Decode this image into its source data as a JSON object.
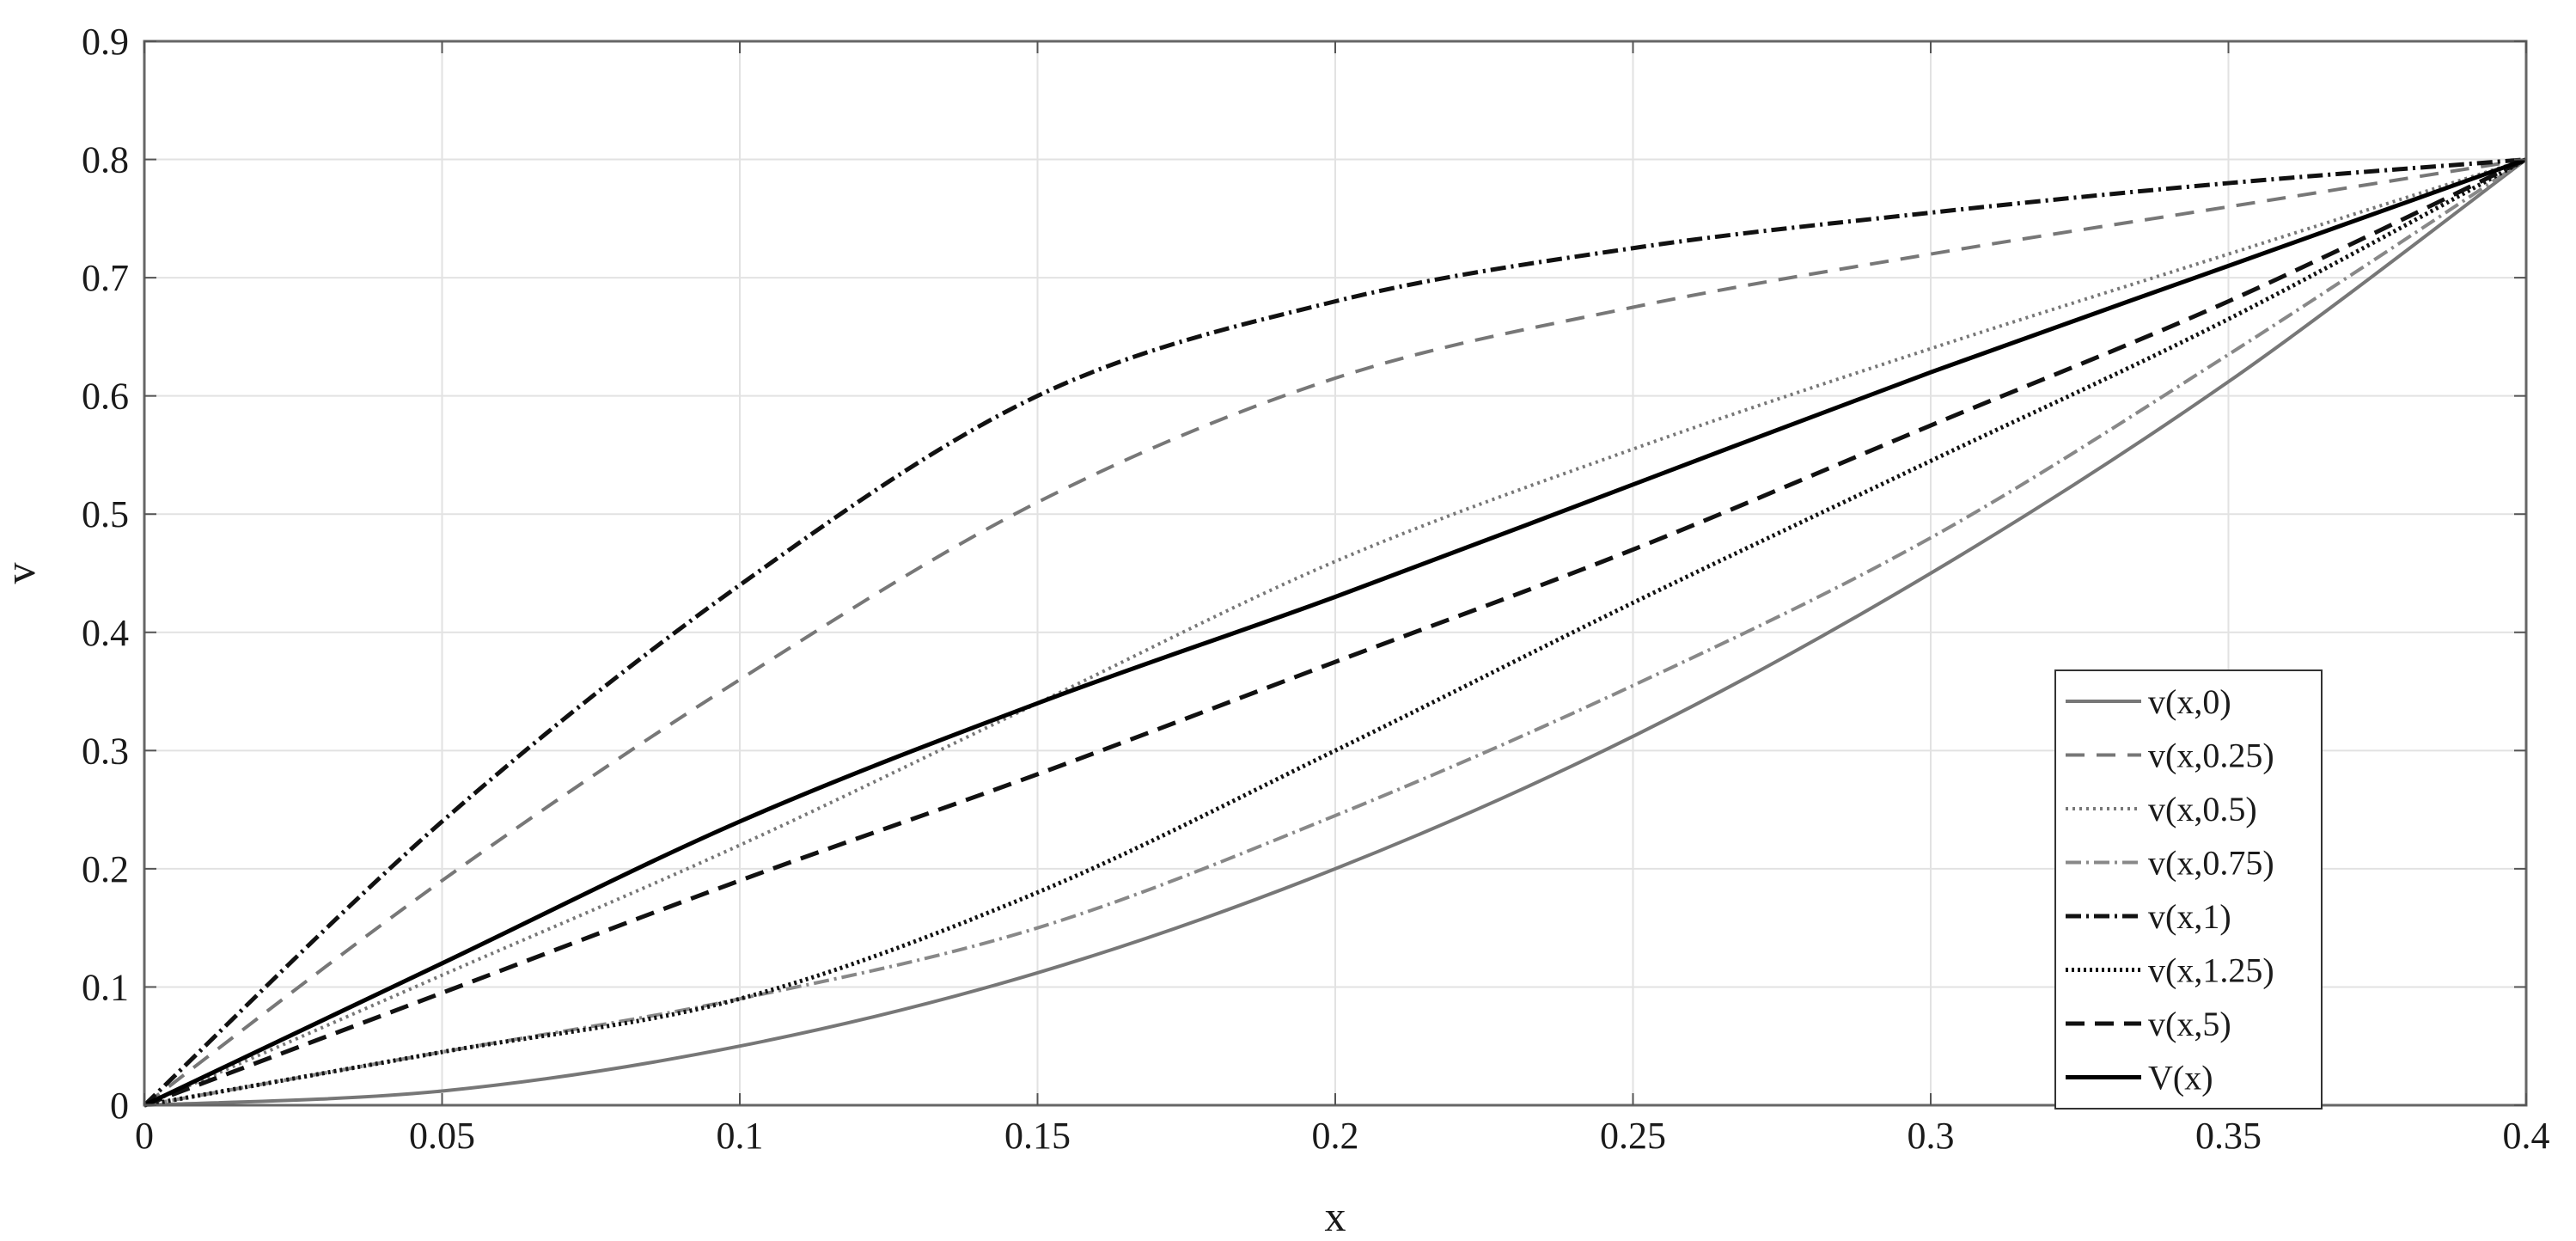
{
  "chart_data": {
    "type": "line",
    "title": "",
    "xlabel": "x",
    "ylabel": "v",
    "xlim": [
      0,
      0.4
    ],
    "ylim": [
      0,
      0.9
    ],
    "xticks": [
      0,
      0.05,
      0.1,
      0.15,
      0.2,
      0.25,
      0.3,
      0.35,
      0.4
    ],
    "xtick_labels": [
      "0",
      "0.05",
      "0.1",
      "0.15",
      "0.2",
      "0.25",
      "0.3",
      "0.35",
      "0.4"
    ],
    "yticks": [
      0,
      0.1,
      0.2,
      0.3,
      0.4,
      0.5,
      0.6,
      0.7,
      0.8,
      0.9
    ],
    "ytick_labels": [
      "0",
      "0.1",
      "0.2",
      "0.3",
      "0.4",
      "0.5",
      "0.6",
      "0.7",
      "0.8",
      "0.9"
    ],
    "grid": true,
    "legend_position": "bottom-right",
    "x": [
      0,
      0.05,
      0.1,
      0.15,
      0.2,
      0.25,
      0.3,
      0.35,
      0.4
    ],
    "series": [
      {
        "name": "v(x,0)",
        "color": "#777777",
        "dash": "solid",
        "width": 4,
        "values": [
          0,
          0.012,
          0.05,
          0.112,
          0.2,
          0.312,
          0.45,
          0.612,
          0.8
        ]
      },
      {
        "name": "v(x,0.25)",
        "color": "#777777",
        "dash": "22,14",
        "width": 4,
        "values": [
          0,
          0.19,
          0.36,
          0.51,
          0.615,
          0.675,
          0.72,
          0.76,
          0.8
        ]
      },
      {
        "name": "v(x,0.5)",
        "color": "#777777",
        "dash": "3,5",
        "width": 4,
        "values": [
          0,
          0.11,
          0.22,
          0.34,
          0.46,
          0.555,
          0.64,
          0.72,
          0.8
        ]
      },
      {
        "name": "v(x,0.75)",
        "color": "#888888",
        "dash": "18,6,3,6",
        "width": 4,
        "values": [
          0,
          0.045,
          0.09,
          0.15,
          0.245,
          0.355,
          0.48,
          0.635,
          0.8
        ]
      },
      {
        "name": "v(x,1)",
        "color": "#111111",
        "dash": "18,6,3,6",
        "width": 5,
        "values": [
          0,
          0.24,
          0.44,
          0.6,
          0.68,
          0.725,
          0.755,
          0.78,
          0.8
        ]
      },
      {
        "name": "v(x,1.25)",
        "color": "#111111",
        "dash": "3,4",
        "width": 5,
        "values": [
          0,
          0.045,
          0.09,
          0.18,
          0.3,
          0.425,
          0.545,
          0.665,
          0.8
        ]
      },
      {
        "name": "v(x,5)",
        "color": "#111111",
        "dash": "22,12",
        "width": 5,
        "values": [
          0,
          0.095,
          0.19,
          0.28,
          0.375,
          0.47,
          0.575,
          0.68,
          0.8
        ]
      },
      {
        "name": "V(x)",
        "color": "#000000",
        "dash": "solid",
        "width": 5,
        "values": [
          0,
          0.12,
          0.24,
          0.34,
          0.43,
          0.525,
          0.62,
          0.71,
          0.8
        ]
      }
    ]
  }
}
